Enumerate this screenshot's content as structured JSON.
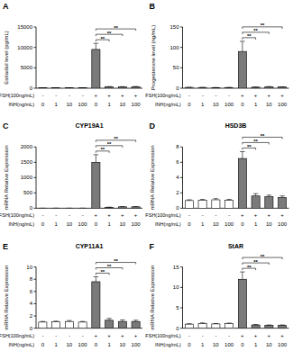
{
  "chart_data": [
    {
      "type": "bar",
      "label": "A",
      "y_label": "Estradiol level (pg/mL)",
      "values": [
        100,
        100,
        95,
        100,
        9500,
        350,
        330,
        360
      ],
      "errors": [
        5,
        5,
        5,
        5,
        1500,
        40,
        40,
        50
      ],
      "colors": [
        "#ffffff",
        "#ffffff",
        "#ffffff",
        "#ffffff",
        "#7a7a7a",
        "#7a7a7a",
        "#7a7a7a",
        "#7a7a7a"
      ],
      "ylim": [
        0,
        15000
      ],
      "yticks": [
        0,
        5000,
        10000,
        15000
      ],
      "x_rows": [
        {
          "label": "FSH(100ng/mL)",
          "values": [
            "-",
            "-",
            "-",
            "-",
            "+",
            "+",
            "+",
            "+"
          ]
        },
        {
          "label": "INH(ng/mL)",
          "values": [
            "0",
            "1",
            "10",
            "100",
            "0",
            "1",
            "10",
            "100"
          ]
        }
      ],
      "annotations": [
        {
          "from": 4,
          "to": 5,
          "text": "**"
        },
        {
          "from": 4,
          "to": 6,
          "text": "**"
        },
        {
          "from": 4,
          "to": 7,
          "text": "**"
        }
      ]
    },
    {
      "type": "bar",
      "label": "B",
      "y_label": "Progesterone level (ng/mL)",
      "values": [
        2,
        1.8,
        1.5,
        1.7,
        90,
        2.5,
        3.5,
        3
      ],
      "errors": [
        0.2,
        0.2,
        0.2,
        0.2,
        25,
        0.3,
        0.4,
        0.3
      ],
      "colors": [
        "#ffffff",
        "#ffffff",
        "#ffffff",
        "#ffffff",
        "#7a7a7a",
        "#7a7a7a",
        "#7a7a7a",
        "#7a7a7a"
      ],
      "ylim": [
        0,
        150
      ],
      "yticks": [
        0,
        50,
        100,
        150
      ],
      "x_rows": [
        {
          "label": "FSH(100ng/mL)",
          "values": [
            "-",
            "-",
            "-",
            "-",
            "+",
            "+",
            "+",
            "+"
          ]
        },
        {
          "label": "INH(ng/mL)",
          "values": [
            "0",
            "1",
            "10",
            "100",
            "0",
            "1",
            "10",
            "100"
          ]
        }
      ],
      "annotations": [
        {
          "from": 4,
          "to": 5,
          "text": "**"
        },
        {
          "from": 4,
          "to": 6,
          "text": "**"
        },
        {
          "from": 4,
          "to": 7,
          "text": "**"
        }
      ]
    },
    {
      "type": "bar",
      "label": "C",
      "title": "CYP19A1",
      "y_label": "mRNA Relative Expression",
      "values": [
        1,
        1.1,
        1.2,
        1.1,
        1500,
        30,
        45,
        45
      ],
      "errors": [
        0.2,
        0.2,
        0.2,
        0.2,
        250,
        5,
        5,
        5
      ],
      "colors": [
        "#ffffff",
        "#ffffff",
        "#ffffff",
        "#ffffff",
        "#7a7a7a",
        "#7a7a7a",
        "#7a7a7a",
        "#7a7a7a"
      ],
      "ylim": [
        0,
        2000
      ],
      "yticks": [
        0,
        500,
        1000,
        1500,
        2000
      ],
      "x_rows": [
        {
          "label": "FSH(100ng/mL)",
          "values": [
            "-",
            "-",
            "-",
            "-",
            "+",
            "+",
            "+",
            "+"
          ]
        },
        {
          "label": "INH(ng/mL)",
          "values": [
            "0",
            "1",
            "10",
            "100",
            "0",
            "1",
            "10",
            "100"
          ]
        }
      ],
      "annotations": [
        {
          "from": 4,
          "to": 5,
          "text": "**"
        },
        {
          "from": 4,
          "to": 6,
          "text": "**"
        },
        {
          "from": 4,
          "to": 7,
          "text": "**"
        }
      ]
    },
    {
      "type": "bar",
      "label": "D",
      "title": "HSD3B",
      "y_label": "mRNA Relative Expression",
      "values": [
        1,
        1.05,
        1.1,
        1.05,
        6.5,
        1.6,
        1.5,
        1.4
      ],
      "errors": [
        0.1,
        0.1,
        0.15,
        0.1,
        0.9,
        0.3,
        0.2,
        0.2
      ],
      "colors": [
        "#ffffff",
        "#ffffff",
        "#ffffff",
        "#ffffff",
        "#7a7a7a",
        "#7a7a7a",
        "#7a7a7a",
        "#7a7a7a"
      ],
      "ylim": [
        0,
        8
      ],
      "yticks": [
        0,
        2,
        4,
        6,
        8
      ],
      "x_rows": [
        {
          "label": "FSH(100ng/mL)",
          "values": [
            "-",
            "-",
            "-",
            "-",
            "+",
            "+",
            "+",
            "+"
          ]
        },
        {
          "label": "INH(ng/mL)",
          "values": [
            "0",
            "1",
            "10",
            "100",
            "0",
            "1",
            "10",
            "100"
          ]
        }
      ],
      "annotations": [
        {
          "from": 4,
          "to": 5,
          "text": "**"
        },
        {
          "from": 4,
          "to": 6,
          "text": "**"
        },
        {
          "from": 4,
          "to": 7,
          "text": "**"
        }
      ]
    },
    {
      "type": "bar",
      "label": "E",
      "title": "CYP11A1",
      "y_label": "mRNA Relative Expression",
      "values": [
        1,
        1.05,
        1.1,
        1,
        7.6,
        1.3,
        1.1,
        1.1
      ],
      "errors": [
        0.1,
        0.1,
        0.15,
        0.1,
        0.8,
        0.3,
        0.25,
        0.2
      ],
      "colors": [
        "#ffffff",
        "#ffffff",
        "#ffffff",
        "#ffffff",
        "#7a7a7a",
        "#7a7a7a",
        "#7a7a7a",
        "#7a7a7a"
      ],
      "ylim": [
        0,
        10
      ],
      "yticks": [
        0,
        2,
        4,
        6,
        8,
        10
      ],
      "x_rows": [
        {
          "label": "FSH(100ng/mL)",
          "values": [
            "-",
            "-",
            "-",
            "-",
            "+",
            "+",
            "+",
            "+"
          ]
        },
        {
          "label": "INH(ng/mL)",
          "values": [
            "0",
            "1",
            "10",
            "100",
            "0",
            "1",
            "10",
            "100"
          ]
        }
      ],
      "annotations": [
        {
          "from": 4,
          "to": 5,
          "text": "**"
        },
        {
          "from": 4,
          "to": 6,
          "text": "**"
        },
        {
          "from": 4,
          "to": 7,
          "text": "**"
        }
      ]
    },
    {
      "type": "bar",
      "label": "F",
      "title": "StAR",
      "y_label": "mRNA Relative Expression",
      "values": [
        1,
        1.1,
        1.05,
        1.1,
        12,
        0.8,
        0.7,
        0.7
      ],
      "errors": [
        0.1,
        0.2,
        0.1,
        0.15,
        1.8,
        0.1,
        0.1,
        0.1
      ],
      "colors": [
        "#ffffff",
        "#ffffff",
        "#ffffff",
        "#ffffff",
        "#7a7a7a",
        "#7a7a7a",
        "#7a7a7a",
        "#7a7a7a"
      ],
      "ylim": [
        0,
        15
      ],
      "yticks": [
        0,
        5,
        10,
        15
      ],
      "x_rows": [
        {
          "label": "FSH(100ng/mL)",
          "values": [
            "-",
            "-",
            "-",
            "-",
            "+",
            "+",
            "+",
            "+"
          ]
        },
        {
          "label": "INH(ng/mL)",
          "values": [
            "0",
            "1",
            "10",
            "100",
            "0",
            "1",
            "10",
            "100"
          ]
        }
      ],
      "annotations": [
        {
          "from": 4,
          "to": 5,
          "text": "**"
        },
        {
          "from": 4,
          "to": 6,
          "text": "**"
        },
        {
          "from": 4,
          "to": 7,
          "text": "**"
        }
      ]
    }
  ]
}
